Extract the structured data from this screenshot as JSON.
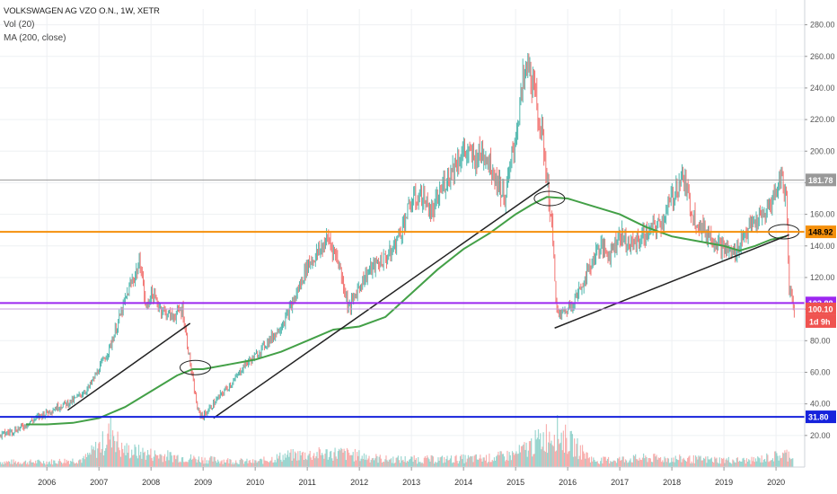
{
  "legend": {
    "title": "VOLKSWAGEN AG VZO O.N., 1W, XETR",
    "indicator1": "Vol (20)",
    "indicator2": "MA (200, close)"
  },
  "chart_data": {
    "type": "line",
    "title": "VOLKSWAGEN AG VZO O.N., 1W, XETR",
    "xlabel": "",
    "ylabel": "",
    "ylim": [
      0,
      280
    ],
    "xlim": [
      2005.1,
      2020.55
    ],
    "grid": true,
    "yticks": [
      20,
      40,
      60,
      80,
      100,
      120,
      140,
      160,
      180,
      200,
      220,
      240,
      260,
      280
    ],
    "ytick_labels": [
      "20.00",
      "40.00",
      "60.00",
      "80.00",
      "100.00",
      "120.00",
      "140.00",
      "160.00",
      "180.00",
      "200.00",
      "220.00",
      "240.00",
      "260.00",
      "280.00"
    ],
    "xticks": [
      2006,
      2007,
      2008,
      2009,
      2010,
      2011,
      2012,
      2013,
      2014,
      2015,
      2016,
      2017,
      2018,
      2019,
      2020
    ],
    "xtick_labels": [
      "2006",
      "2007",
      "2008",
      "2009",
      "2010",
      "2011",
      "2012",
      "2013",
      "2014",
      "2015",
      "2016",
      "2017",
      "2018",
      "2019",
      "2020"
    ],
    "series": [
      {
        "name": "",
        "color": "#26a69a",
        "x": [
          2005.1,
          2005.5,
          2005.9,
          2006.2,
          2006.5,
          2006.8,
          2007.0,
          2007.2,
          2007.4,
          2007.6,
          2007.8,
          2007.9,
          2008.0,
          2008.2,
          2008.4,
          2008.6,
          2008.8,
          2008.9,
          2009.0,
          2009.2,
          2009.4,
          2009.6,
          2009.8,
          2010.0,
          2010.2,
          2010.4,
          2010.6,
          2010.8,
          2011.0,
          2011.2,
          2011.4,
          2011.6,
          2011.8,
          2012.0,
          2012.2,
          2012.4,
          2012.6,
          2012.8,
          2013.0,
          2013.2,
          2013.4,
          2013.6,
          2013.8,
          2014.0,
          2014.2,
          2014.4,
          2014.6,
          2014.8,
          2015.0,
          2015.15,
          2015.25,
          2015.4,
          2015.55,
          2015.7,
          2015.8,
          2016.0,
          2016.2,
          2016.4,
          2016.6,
          2016.8,
          2017.0,
          2017.2,
          2017.4,
          2017.6,
          2017.8,
          2018.0,
          2018.2,
          2018.4,
          2018.6,
          2018.8,
          2019.0,
          2019.2,
          2019.4,
          2019.6,
          2019.8,
          2020.0,
          2020.1,
          2020.2,
          2020.25,
          2020.35
        ],
        "values": [
          20,
          25,
          33,
          38,
          42,
          50,
          62,
          75,
          95,
          115,
          130,
          100,
          110,
          100,
          95,
          100,
          55,
          35,
          32,
          40,
          48,
          55,
          65,
          70,
          78,
          85,
          95,
          110,
          128,
          135,
          145,
          130,
          100,
          115,
          125,
          130,
          135,
          150,
          168,
          172,
          160,
          178,
          190,
          200,
          195,
          200,
          185,
          170,
          210,
          245,
          255,
          230,
          200,
          150,
          95,
          100,
          110,
          125,
          140,
          135,
          148,
          140,
          145,
          150,
          155,
          170,
          185,
          160,
          150,
          145,
          138,
          135,
          148,
          155,
          160,
          175,
          185,
          170,
          115,
          101
        ]
      },
      {
        "name": "",
        "color": "#43a047",
        "x": [
          2005.6,
          2006.0,
          2006.5,
          2007.0,
          2007.5,
          2008.0,
          2008.5,
          2008.8,
          2009.0,
          2009.5,
          2010.0,
          2010.5,
          2011.0,
          2011.5,
          2012.0,
          2012.5,
          2013.0,
          2013.5,
          2014.0,
          2014.5,
          2015.0,
          2015.3,
          2015.6,
          2016.0,
          2016.5,
          2017.0,
          2017.5,
          2018.0,
          2018.5,
          2019.0,
          2019.3,
          2019.6,
          2019.9,
          2020.2
        ],
        "values": [
          27,
          27,
          28,
          31,
          38,
          48,
          58,
          62,
          62,
          65,
          68,
          73,
          80,
          87,
          89,
          95,
          110,
          125,
          138,
          148,
          160,
          166,
          171,
          170,
          165,
          160,
          152,
          146,
          143,
          140,
          137,
          140,
          144,
          146
        ]
      }
    ],
    "volume": {
      "x": [
        2006.0,
        2006.7,
        2007.1,
        2007.25,
        2007.4,
        2008.0,
        2009.0,
        2010.0,
        2010.6,
        2011.6,
        2012.5,
        2013.5,
        2014.5,
        2015.0,
        2015.75,
        2016.5,
        2017.5,
        2018.5,
        2019.5,
        2020.2
      ],
      "values": [
        4,
        6,
        20,
        30,
        14,
        10,
        6,
        4,
        9,
        11,
        6,
        6,
        7,
        10,
        28,
        5,
        7,
        6,
        5,
        10
      ]
    },
    "levels": [
      {
        "value": 181.78,
        "label": "181.78",
        "color": "#999999",
        "text_color": "#ffffff"
      },
      {
        "value": 148.92,
        "label": "148.92",
        "color": "#f5900c",
        "text_color": "#000000"
      },
      {
        "value": 103.88,
        "label": "103.88",
        "color": "#9c27f0",
        "text_color": "#ffffff"
      },
      {
        "value": 100.1,
        "label": "100.10",
        "color": "#ef5350",
        "text_color": "#ffffff"
      },
      {
        "value": 31.8,
        "label": "31.80",
        "color": "#1622dc",
        "text_color": "#ffffff"
      }
    ],
    "countdown_label": "1d 9h",
    "trendlines": [
      {
        "x": [
          2006.4,
          2008.75
        ],
        "values": [
          36,
          91
        ]
      },
      {
        "x": [
          2009.2,
          2015.65
        ],
        "values": [
          31,
          180
        ]
      },
      {
        "x": [
          2015.75,
          2020.25
        ],
        "values": [
          88,
          147
        ]
      }
    ],
    "annotations": [
      {
        "type": "ellipse",
        "x": 2008.85,
        "y": 63
      },
      {
        "type": "ellipse",
        "x": 2015.65,
        "y": 170
      },
      {
        "type": "ellipse",
        "x": 2020.15,
        "y": 149
      }
    ]
  }
}
